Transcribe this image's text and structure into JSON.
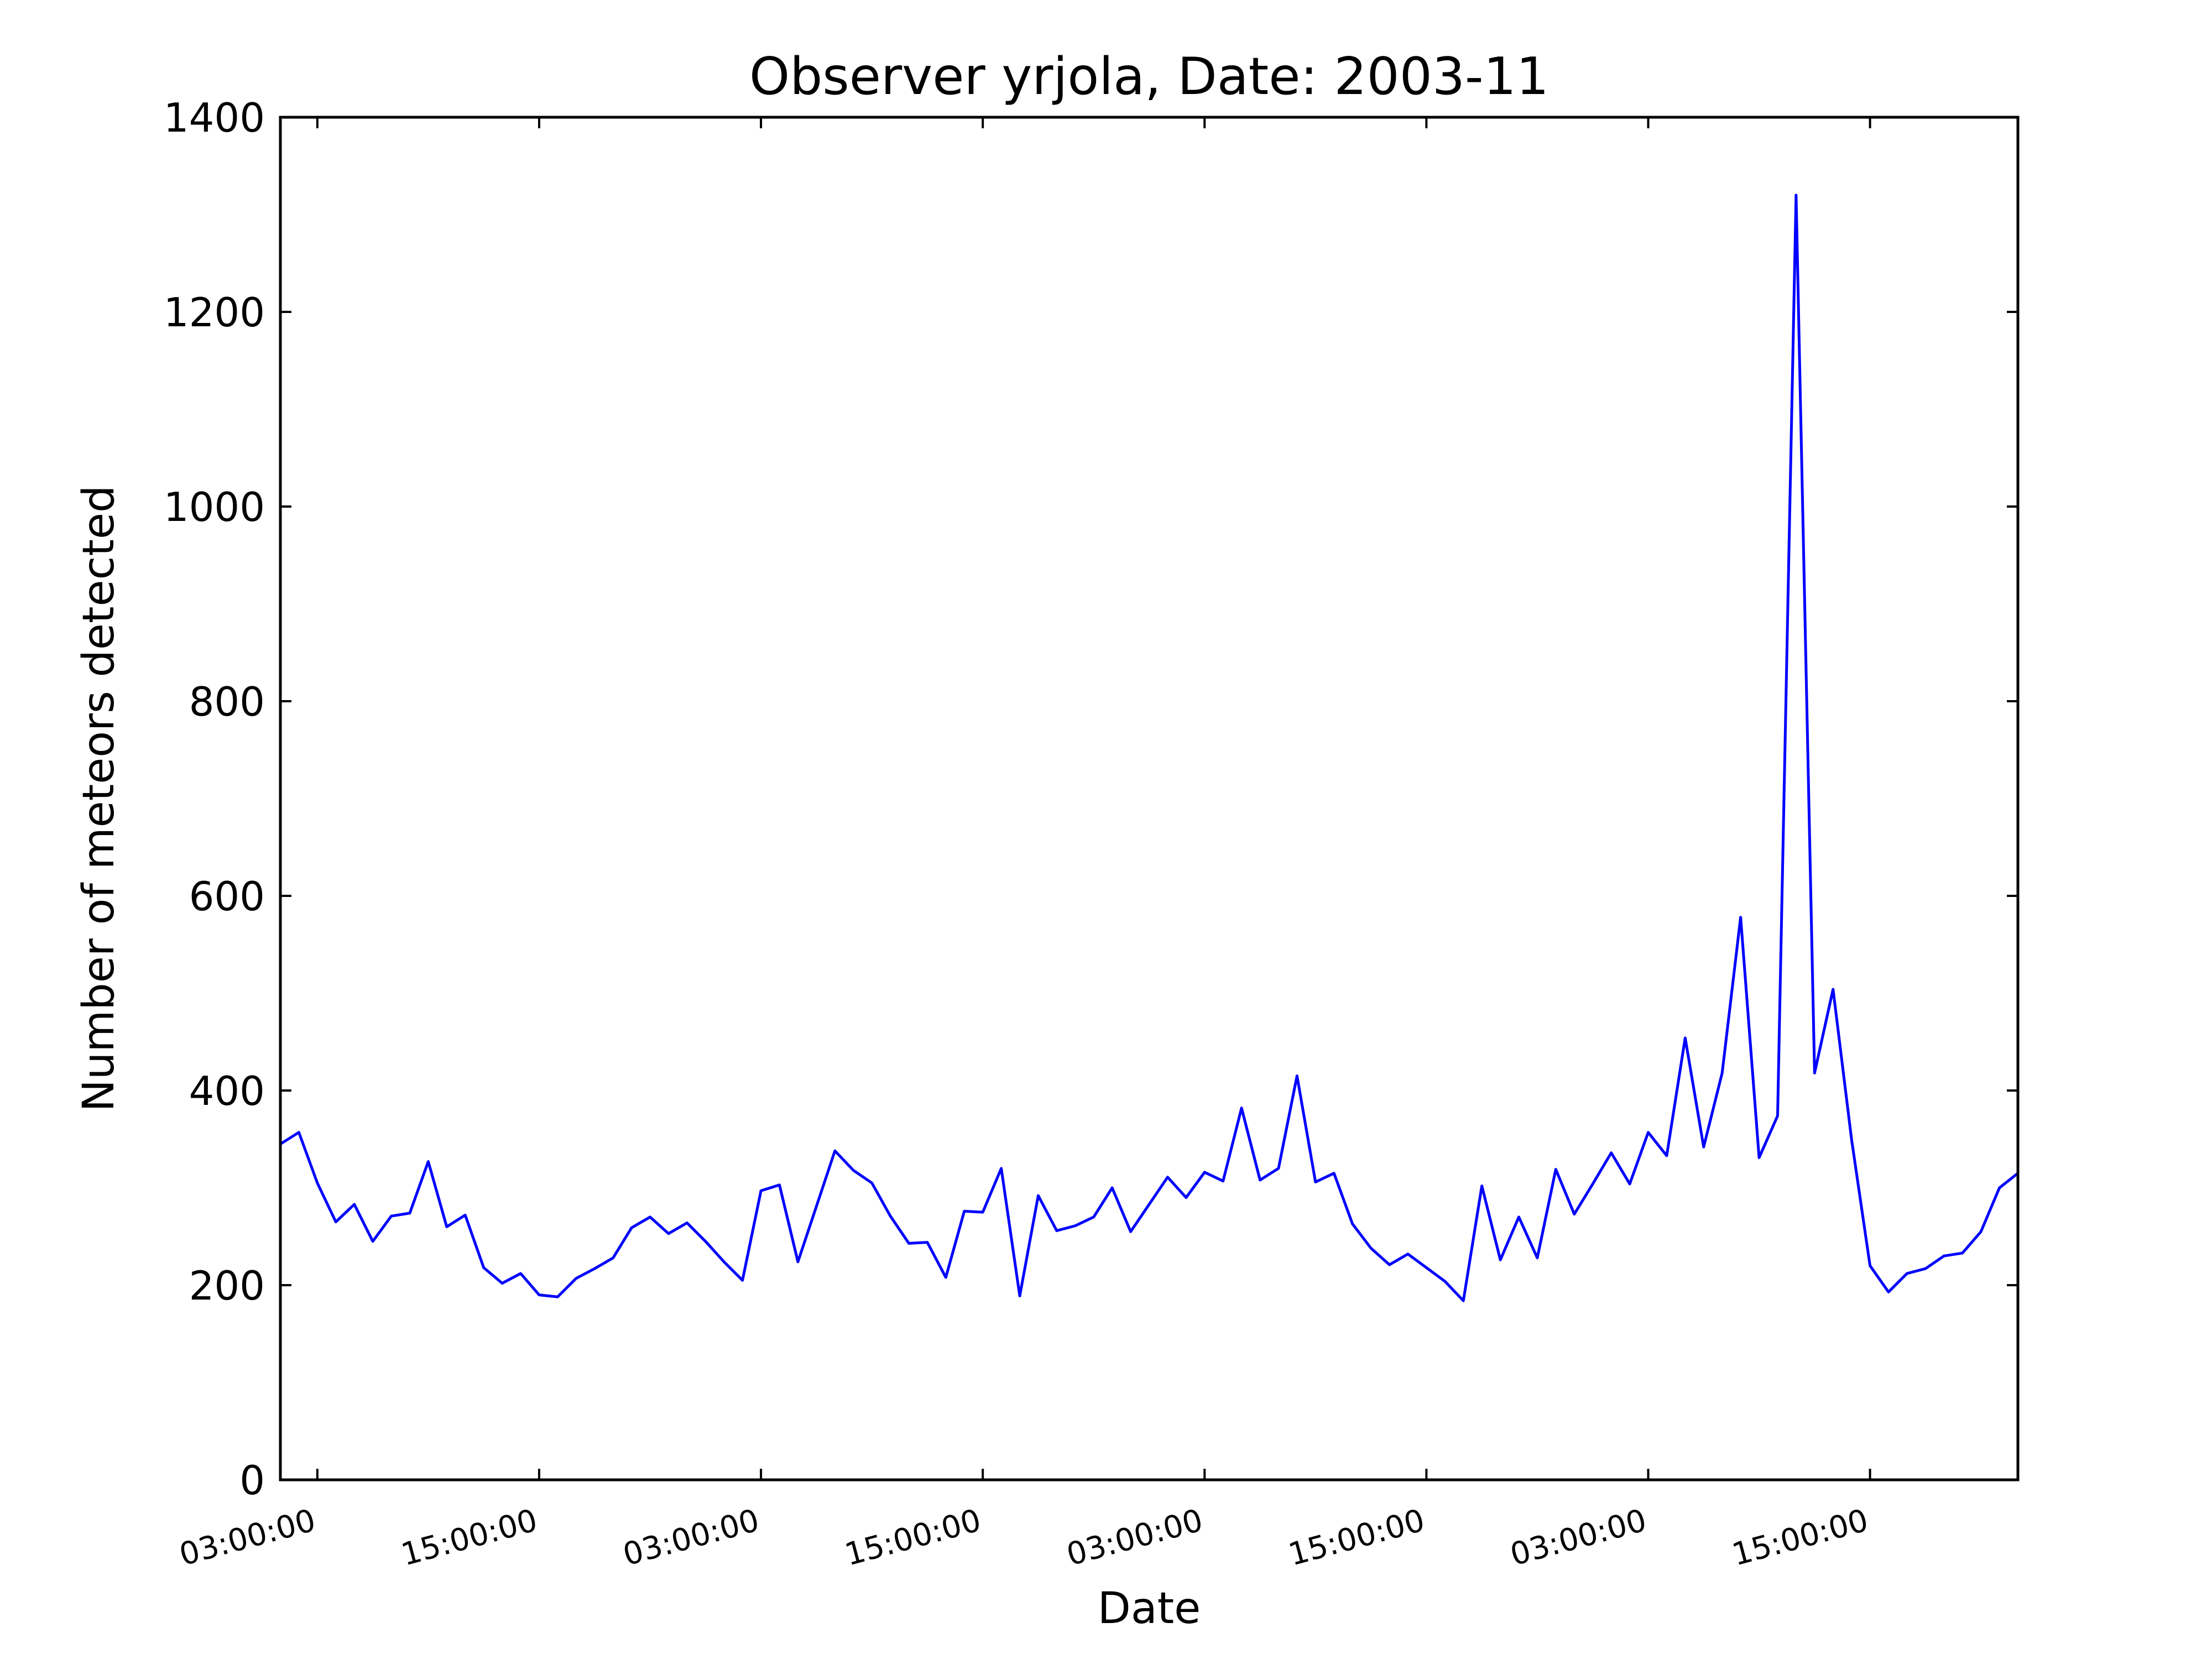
{
  "chart_data": {
    "type": "line",
    "title": "Observer yrjola, Date: 2003-11",
    "x_label": "Date",
    "y_label": "Number of meteors detected",
    "x": [
      1,
      2,
      3,
      4,
      5,
      6,
      7,
      8,
      9,
      10,
      11,
      12,
      13,
      14,
      15,
      16,
      17,
      18,
      19,
      20,
      21,
      22,
      23,
      24,
      25,
      26,
      27,
      28,
      29,
      30,
      31,
      32,
      33,
      34,
      35,
      36,
      37,
      38,
      39,
      40,
      41,
      42,
      43,
      44,
      45,
      46,
      47,
      48,
      49,
      50,
      51,
      52,
      53,
      54,
      55,
      56,
      57,
      58,
      59,
      60,
      61,
      62,
      63,
      64,
      65,
      66,
      67,
      68,
      69,
      70,
      71,
      72,
      73,
      74,
      75,
      76,
      77,
      78,
      79,
      80,
      81,
      82,
      83,
      84,
      85,
      86,
      87,
      88,
      89,
      90,
      91,
      92,
      93,
      94,
      95
    ],
    "series": [
      {
        "name": "meteors",
        "color": "#0000ff",
        "values": [
          345,
          357,
          305,
          265,
          283,
          245,
          271,
          274,
          327,
          260,
          272,
          218,
          202,
          212,
          190,
          188,
          207,
          217,
          228,
          259,
          270,
          253,
          264,
          245,
          224,
          205,
          297,
          303,
          224,
          281,
          338,
          318,
          305,
          271,
          243,
          244,
          208,
          276,
          275,
          320,
          189,
          292,
          256,
          261,
          270,
          300,
          255,
          283,
          311,
          290,
          316,
          307,
          382,
          308,
          320,
          415,
          306,
          315,
          263,
          238,
          221,
          232,
          218,
          204,
          184,
          302,
          226,
          270,
          228,
          319,
          273,
          304,
          336,
          304,
          357,
          333,
          454,
          342,
          418,
          578,
          331,
          374,
          1320,
          418,
          504,
          350,
          220,
          193,
          212,
          217,
          230,
          233,
          255,
          300,
          315
        ]
      }
    ],
    "xlim": [
      1,
      95
    ],
    "xticks": [
      {
        "value": 3,
        "label": "03:00:00"
      },
      {
        "value": 15,
        "label": "15:00:00"
      },
      {
        "value": 27,
        "label": "03:00:00"
      },
      {
        "value": 39,
        "label": "15:00:00"
      },
      {
        "value": 51,
        "label": "03:00:00"
      },
      {
        "value": 63,
        "label": "15:00:00"
      },
      {
        "value": 75,
        "label": "03:00:00"
      },
      {
        "value": 87,
        "label": "15:00:00"
      }
    ],
    "ylim": [
      0,
      1400
    ],
    "yticks": [
      0,
      200,
      400,
      600,
      800,
      1000,
      1200,
      1400
    ]
  }
}
